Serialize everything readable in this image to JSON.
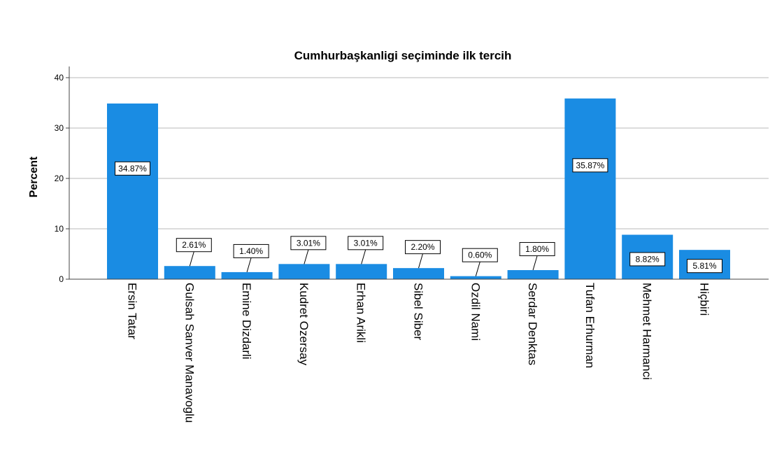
{
  "chart_data": {
    "type": "bar",
    "title": "Cumhurbaşkanligi seçiminde ilk tercih",
    "xlabel": "",
    "ylabel": "Percent",
    "ylim": [
      0,
      40
    ],
    "yticks": [
      0,
      10,
      20,
      30,
      40
    ],
    "grid": true,
    "bar_color": "#1a8ce3",
    "categories": [
      "Ersin Tatar",
      "Gulsah Sanver Manavoglu",
      "Emine Dizdarli",
      "Kudret Ozersay",
      "Erhan Arikli",
      "Sibel Siber",
      "Ozdil Nami",
      "Serdar Denktas",
      "Tufan Erhurman",
      "Mehmet Harmanci",
      "Hiçbiri"
    ],
    "values": [
      34.87,
      2.61,
      1.4,
      3.01,
      3.01,
      2.2,
      0.6,
      1.8,
      35.87,
      8.82,
      5.81
    ],
    "data_labels": [
      "34.87%",
      "2.61%",
      "1.40%",
      "3.01%",
      "3.01%",
      "2.20%",
      "0.60%",
      "1.80%",
      "35.87%",
      "8.82%",
      "5.81%"
    ]
  }
}
